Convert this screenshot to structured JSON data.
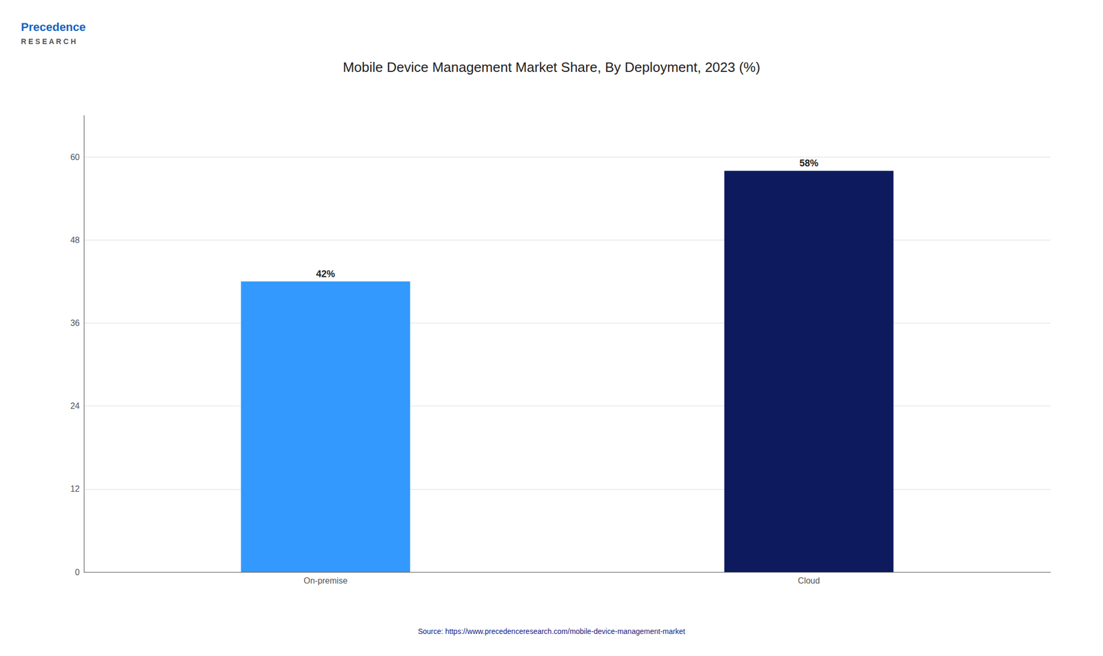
{
  "chart_data": {
    "type": "bar",
    "title": "Mobile Device Management Market Share, By Deployment, 2023 (%)",
    "categories": [
      "On-premise",
      "Cloud"
    ],
    "values": [
      42,
      58
    ],
    "value_labels": [
      "42%",
      "58%"
    ],
    "data_labels": true,
    "colors": [
      "#3399FF",
      "#0D1B5E"
    ],
    "ylim": [
      0,
      66
    ],
    "yticks": [
      0,
      12,
      24,
      36,
      48,
      60
    ],
    "grid": true,
    "annotations": [
      "Source: https://www.precedenceresearch.com/mobile-device-management-market",
      "Precedence",
      "R E S E A R C H"
    ]
  }
}
